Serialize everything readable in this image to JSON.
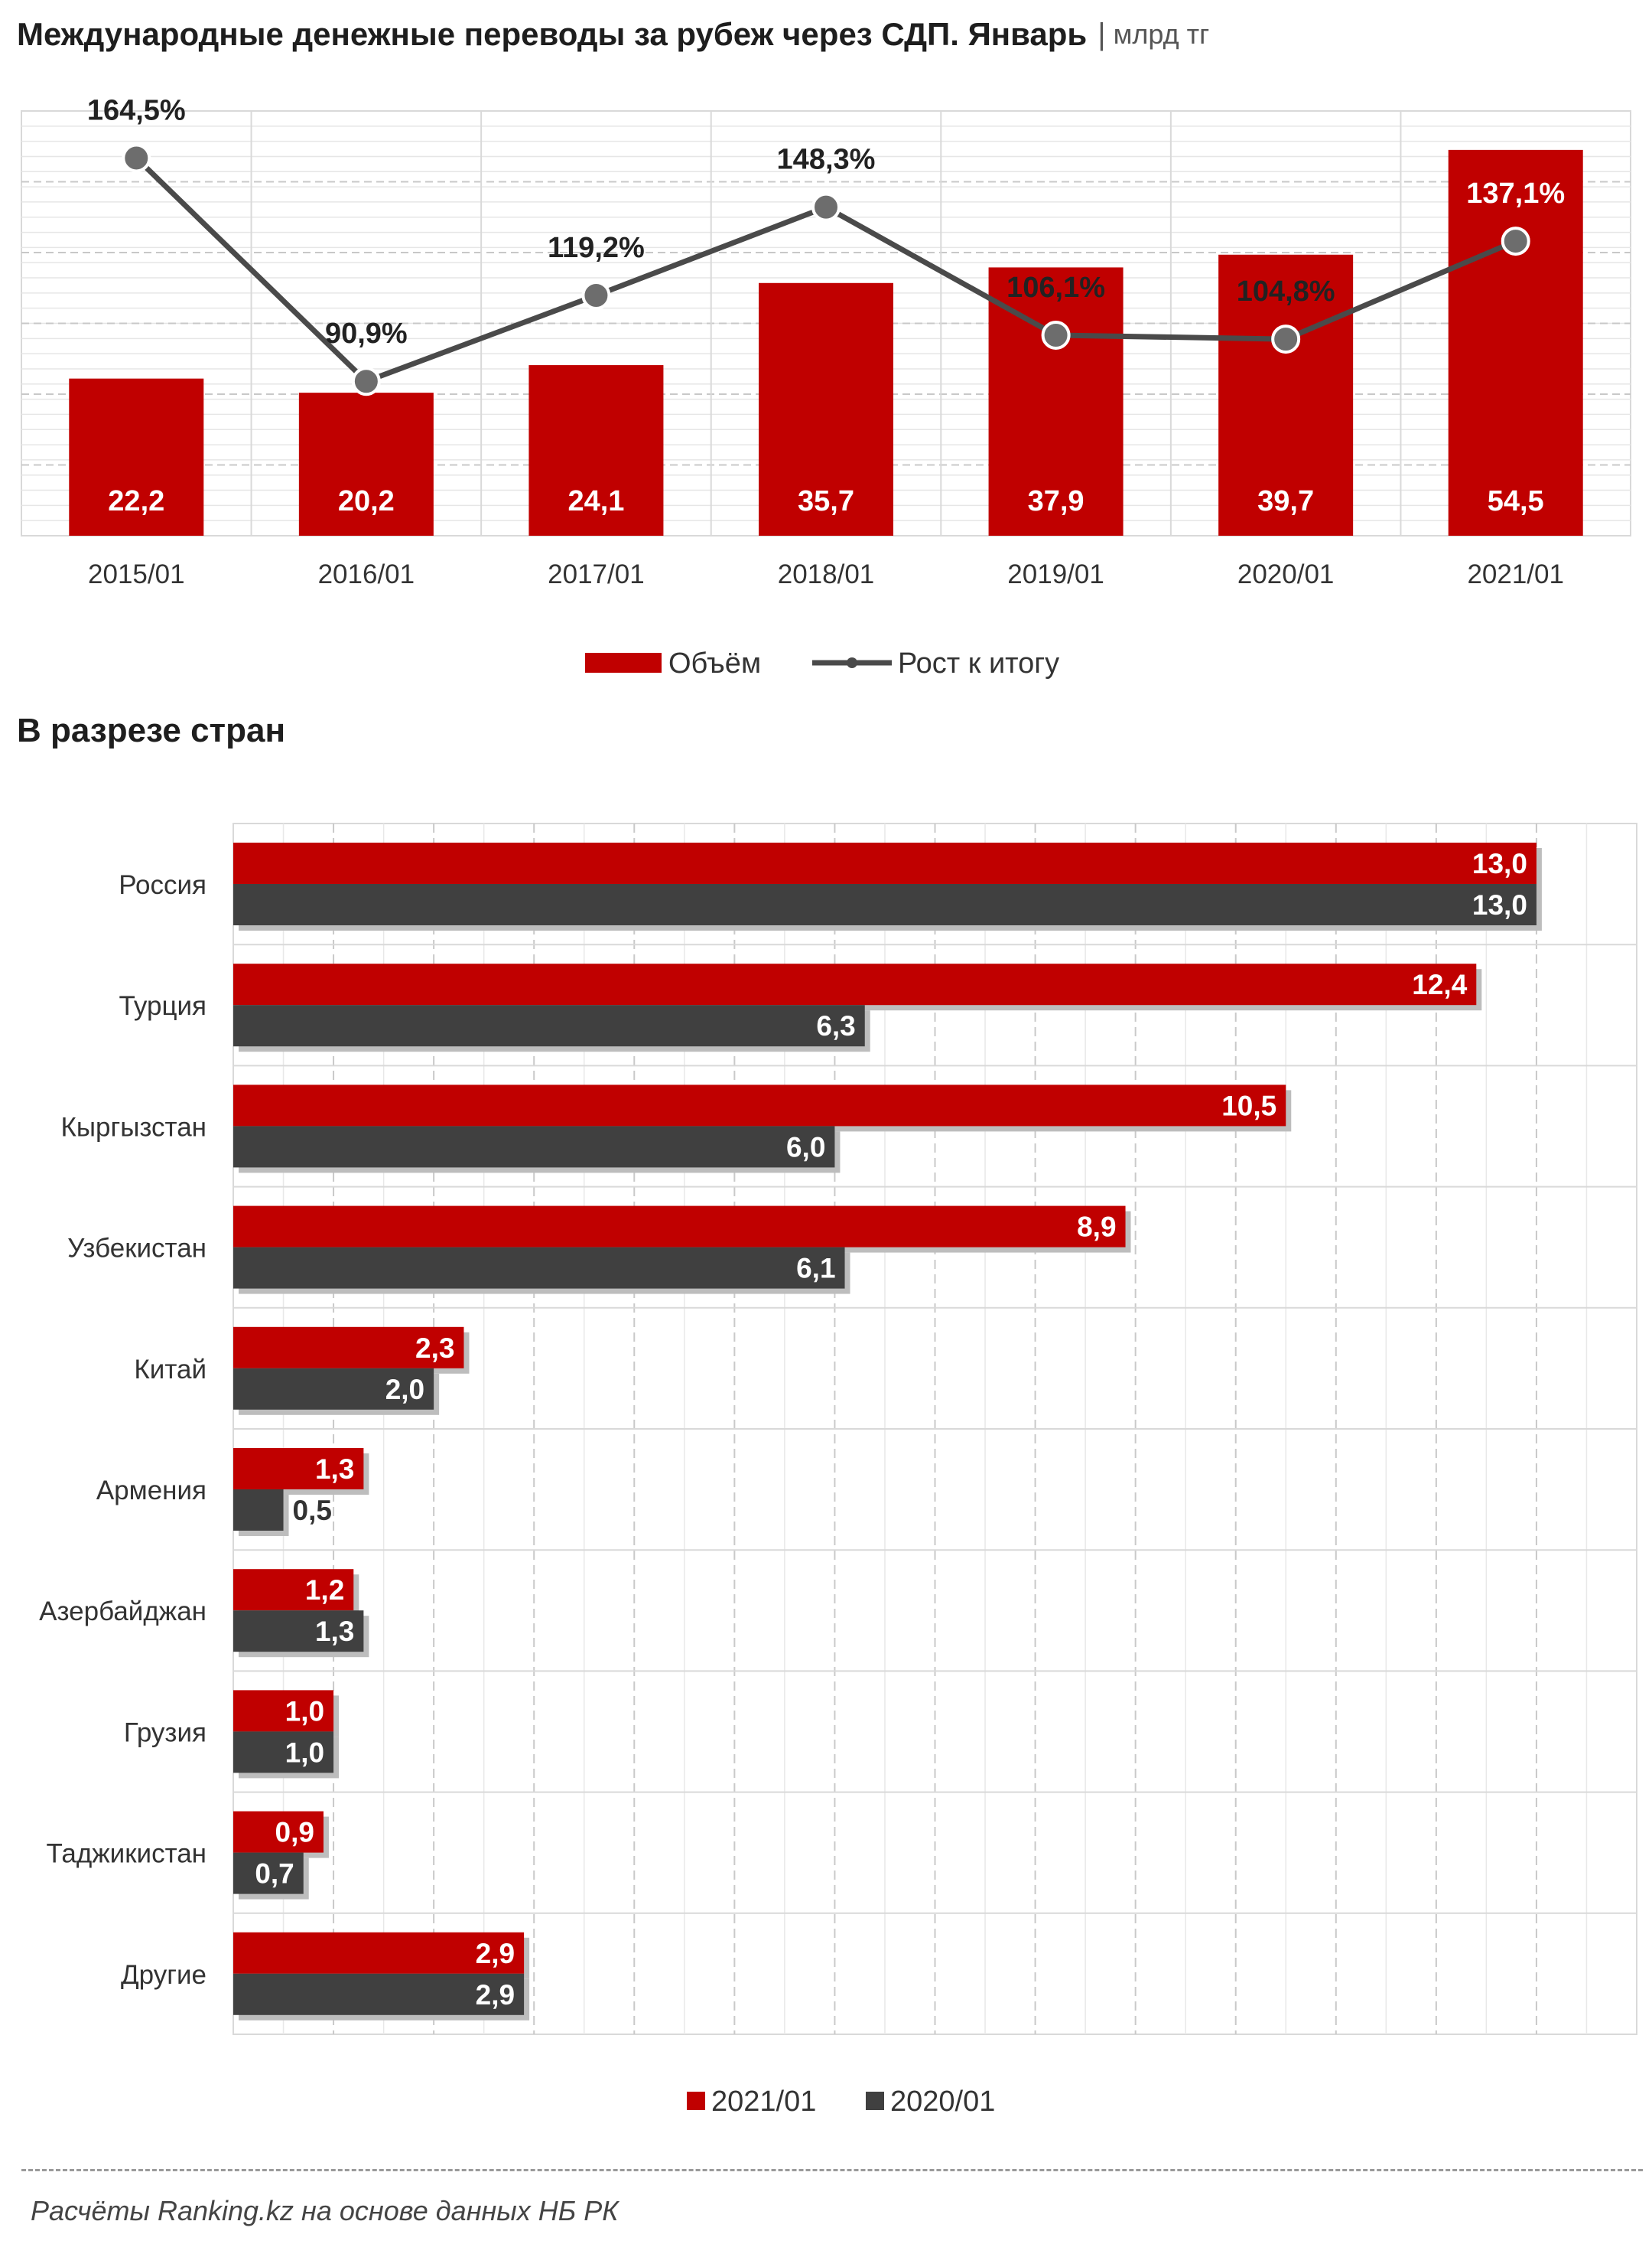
{
  "header": {
    "title": "Международные денежные переводы за рубеж через СДП. Январь",
    "separator": "|",
    "unit": "млрд тг"
  },
  "subtitle": "В разрезе стран",
  "footer": {
    "source": "Расчёты Ranking.kz на основе данных НБ РК"
  },
  "colors": {
    "red": "#c00000",
    "dark": "#404040",
    "line": "#4a4a4a"
  },
  "chart_data": [
    {
      "type": "bar",
      "categories": [
        "2015/01",
        "2016/01",
        "2017/01",
        "2018/01",
        "2019/01",
        "2020/01",
        "2021/01"
      ],
      "series": [
        {
          "name": "Объём",
          "type": "bar",
          "color": "#c00000",
          "values": [
            22.2,
            20.2,
            24.1,
            35.7,
            37.9,
            39.7,
            54.5
          ],
          "labels": [
            "22,2",
            "20,2",
            "24,1",
            "35,7",
            "37,9",
            "39,7",
            "54,5"
          ]
        },
        {
          "name": "Рост к итогу",
          "type": "line",
          "color": "#4a4a4a",
          "values": [
            164.5,
            90.9,
            119.2,
            148.3,
            106.1,
            104.8,
            137.1
          ],
          "labels": [
            "164,5%",
            "90,9%",
            "119,2%",
            "148,3%",
            "106,1%",
            "104,8%",
            "137,1%"
          ]
        }
      ],
      "ylim": [
        0,
        60
      ],
      "ylim_secondary": [
        40,
        180
      ],
      "legend": "bottom"
    },
    {
      "type": "bar",
      "orientation": "horizontal",
      "categories": [
        "Россия",
        "Турция",
        "Кыргызстан",
        "Узбекистан",
        "Китай",
        "Армения",
        "Азербайджан",
        "Грузия",
        "Таджикистан",
        "Другие"
      ],
      "series": [
        {
          "name": "2021/01",
          "color": "#c00000",
          "values": [
            13.0,
            12.4,
            10.5,
            8.9,
            2.3,
            1.3,
            1.2,
            1.0,
            0.9,
            2.9
          ],
          "labels": [
            "13,0",
            "12,4",
            "10,5",
            "8,9",
            "2,3",
            "1,3",
            "1,2",
            "1,0",
            "0,9",
            "2,9"
          ]
        },
        {
          "name": "2020/01",
          "color": "#404040",
          "values": [
            13.0,
            6.3,
            6.0,
            6.1,
            2.0,
            0.5,
            1.3,
            1.0,
            0.7,
            2.9
          ],
          "labels": [
            "13,0",
            "6,3",
            "6,0",
            "6,1",
            "2,0",
            "0,5",
            "1,3",
            "1,0",
            "0,7",
            "2,9"
          ]
        }
      ],
      "xlim": [
        0,
        14
      ],
      "legend": "bottom"
    }
  ]
}
